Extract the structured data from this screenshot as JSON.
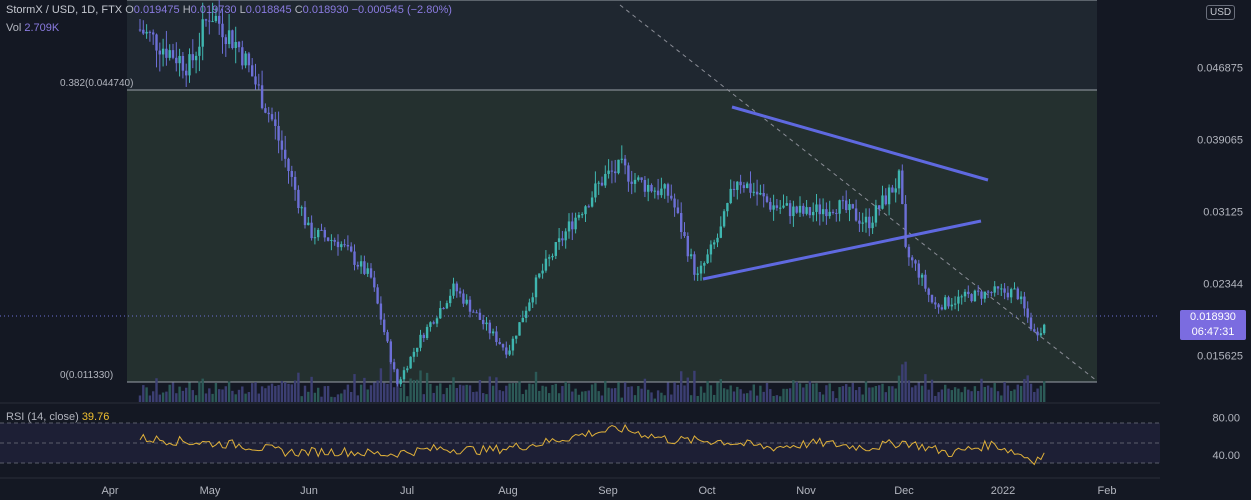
{
  "header": {
    "symbol": "StormX / USD, 1D, FTX",
    "open_label": "O",
    "open_value": "0.019475",
    "high_label": "H",
    "high_value": "0.019730",
    "low_label": "L",
    "low_value": "0.018845",
    "close_label": "C",
    "close_value": "0.018930",
    "change": "−0.000545 (−2.80%)"
  },
  "volume": {
    "label": "Vol",
    "value": "2.709K"
  },
  "rsi": {
    "label": "RSI (14, close)",
    "value": "39.76"
  },
  "price_tag": {
    "price": "0.018930",
    "countdown": "06:47:31"
  },
  "currency_badge": "USD",
  "fib_levels": [
    {
      "label": "0.382(0.044740)",
      "price": 0.04474
    },
    {
      "label": "0(0.011330)",
      "price": 0.01133
    }
  ],
  "colors": {
    "background": "#141823",
    "candle": "#6c6fd6",
    "candle_alt": "#3fb6b0",
    "trendline": "#5f69e0",
    "fib_zone": "#2a3a36",
    "rsi_line": "#e0b13a"
  },
  "chart_data": [
    {
      "type": "candlestick",
      "title": "StormX / USD, 1D, FTX",
      "x_ticks": [
        "Apr",
        "May",
        "Jun",
        "Jul",
        "Aug",
        "Sep",
        "Oct",
        "Nov",
        "Dec",
        "2022",
        "Feb"
      ],
      "y_ticks": [
        0.015625,
        0.02344,
        0.03125,
        0.039065,
        0.046875
      ],
      "ylim": [
        0.0108,
        0.0542
      ],
      "grid": false,
      "series": [
        {
          "name": "price",
          "x": [
            "Apr 10",
            "Apr 25",
            "May 1",
            "May 10",
            "May 20",
            "Jun 1",
            "Jun 10",
            "Jun 20",
            "Jun 28",
            "Jul 5",
            "Jul 15",
            "Jul 25",
            "Aug 1",
            "Aug 10",
            "Aug 20",
            "Aug 30",
            "Sep 5",
            "Sep 10",
            "Sep 20",
            "Sep 28",
            "Oct 5",
            "Oct 10",
            "Oct 20",
            "Nov 1",
            "Nov 10",
            "Nov 20",
            "Nov 30",
            "Dec 1",
            "Dec 5",
            "Dec 10",
            "Dec 20",
            "Dec 28",
            "Jan 5",
            "Jan 10",
            "Jan 13"
          ],
          "values": [
            0.051,
            0.047,
            0.053,
            0.049,
            0.041,
            0.029,
            0.028,
            0.024,
            0.0125,
            0.0175,
            0.023,
            0.0185,
            0.016,
            0.024,
            0.03,
            0.035,
            0.036,
            0.0345,
            0.033,
            0.024,
            0.029,
            0.035,
            0.032,
            0.031,
            0.032,
            0.03,
            0.035,
            0.027,
            0.025,
            0.021,
            0.022,
            0.0225,
            0.0225,
            0.018,
            0.0189
          ]
        }
      ]
    },
    {
      "type": "line",
      "title": "RSI (14, close)",
      "y_ticks": [
        40,
        80
      ],
      "ylim": [
        20,
        90
      ],
      "series": [
        {
          "name": "RSI",
          "x": [
            "Apr 10",
            "Apr 25",
            "May 10",
            "May 25",
            "Jun 10",
            "Jun 25",
            "Jul 10",
            "Jul 25",
            "Aug 10",
            "Aug 25",
            "Sep 5",
            "Sep 20",
            "Oct 5",
            "Oct 20",
            "Nov 5",
            "Nov 20",
            "Dec 1",
            "Dec 15",
            "Dec 28",
            "Jan 10",
            "Jan 13"
          ],
          "values": [
            58,
            54,
            51,
            43,
            44,
            41,
            47,
            45,
            52,
            63,
            68,
            56,
            55,
            48,
            53,
            48,
            54,
            42,
            52,
            35,
            39.76
          ]
        }
      ]
    }
  ]
}
